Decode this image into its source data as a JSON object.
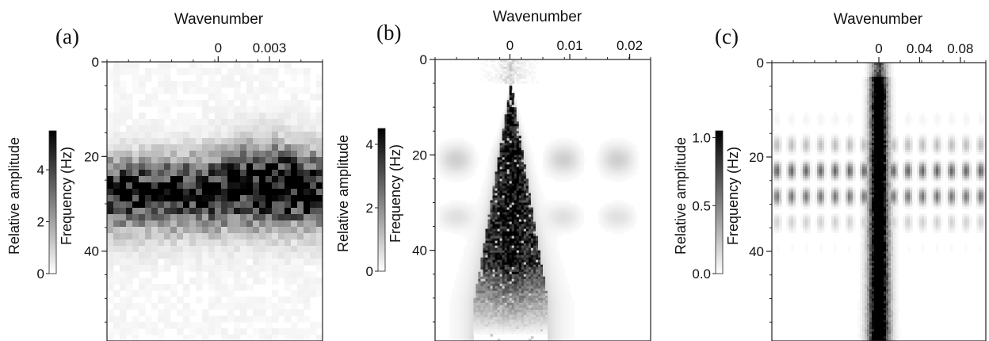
{
  "figure": {
    "panels": [
      {
        "label": "(a)"
      },
      {
        "label": "(b)"
      },
      {
        "label": "(c)"
      }
    ]
  },
  "chart_data": [
    {
      "type": "heatmap",
      "panel": "(a)",
      "xlabel": "Wavenumber",
      "ylabel": "Frequency (Hz)",
      "colorbar_label": "Relative amplitude",
      "x_ticks": [
        0,
        0.003
      ],
      "xlim": [
        -0.0065,
        0.0061
      ],
      "y_ticks": [
        0,
        20,
        40
      ],
      "ylim": [
        0,
        59
      ],
      "colorbar_ticks": [
        0,
        2,
        4
      ],
      "colorbar_range": [
        0,
        5.5
      ],
      "colormap": [
        "#ffffff",
        "#000000"
      ],
      "pattern": "coarse-blocky-band",
      "description": "Energy concentrated in a broad band centred near 25 Hz spanning the full wavenumber range, peaking toward positive wavenumbers"
    },
    {
      "type": "heatmap",
      "panel": "(b)",
      "xlabel": "Wavenumber",
      "ylabel": "Frequency (Hz)",
      "colorbar_label": "Relative amplitude",
      "x_ticks": [
        0,
        0.01,
        0.02
      ],
      "xlim": [
        -0.0125,
        0.0235
      ],
      "y_ticks": [
        0,
        20,
        40
      ],
      "ylim": [
        0,
        59
      ],
      "colorbar_ticks": [
        0,
        2,
        4
      ],
      "colorbar_range": [
        0,
        4.5
      ],
      "colormap": [
        "#ffffff",
        "#000000"
      ],
      "pattern": "triangular-fan",
      "description": "Triangular energy fan apex near 5 Hz at zero wavenumber, widening to roughly +/-0.006 at 50 Hz; faint horizontal ghosts near 21 Hz and 33 Hz"
    },
    {
      "type": "heatmap",
      "panel": "(c)",
      "xlabel": "Wavenumber",
      "ylabel": "Frequency (Hz)",
      "colorbar_label": "Relative amplitude",
      "x_ticks": [
        0,
        0.04,
        0.08
      ],
      "xlim": [
        -0.105,
        0.105
      ],
      "y_ticks": [
        0,
        20,
        40
      ],
      "ylim": [
        0,
        59
      ],
      "colorbar_ticks": [
        0,
        0.5,
        1.0
      ],
      "colorbar_range": [
        0,
        1.05
      ],
      "colormap": [
        "#ffffff",
        "#000000"
      ],
      "pattern": "narrow-column-with-sidelobes",
      "description": "Narrow high-amplitude column centred on zero wavenumber from 0 to 59 Hz, with periodic side-lobe stripes around 16-34 Hz"
    }
  ]
}
